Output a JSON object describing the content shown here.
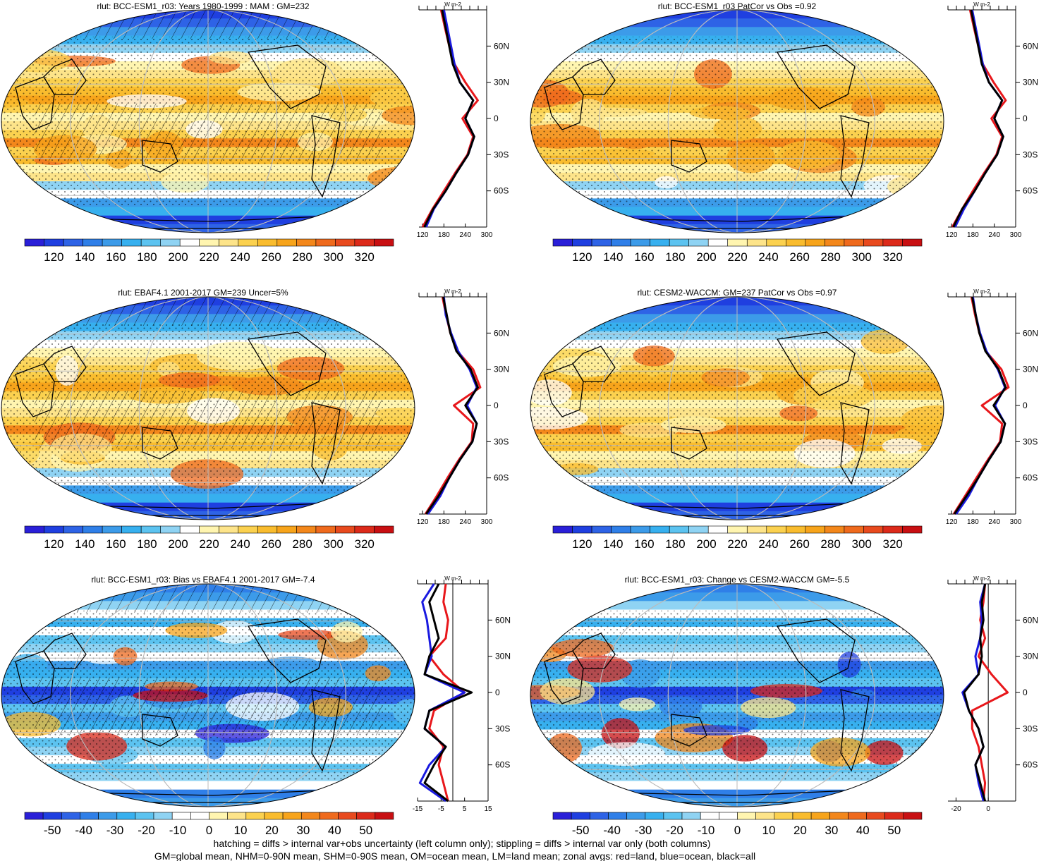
{
  "colors": {
    "mean_palette": [
      "#2a1fd8",
      "#1f3fe0",
      "#2e63e6",
      "#2f7fe8",
      "#3c9be9",
      "#37b0ef",
      "#5cc3f0",
      "#8fd3f3",
      "#ffffff",
      "#fff5b0",
      "#fde48a",
      "#fbd14f",
      "#f9bc2e",
      "#f7a41b",
      "#f3871b",
      "#ef6a1d",
      "#e84a1e",
      "#dc2a1a",
      "#c80f12"
    ],
    "diff_palette": [
      "#2a1fd8",
      "#1f3fe0",
      "#2e63e6",
      "#2f7fe8",
      "#3c9be9",
      "#37b0ef",
      "#5cc3f0",
      "#8fd3f3",
      "#ffffff",
      "#ffffff",
      "#fff5b0",
      "#fde48a",
      "#fbd14f",
      "#f9bc2e",
      "#f7a41b",
      "#f3871b",
      "#ef6a1d",
      "#e84a1e",
      "#dc2a1a",
      "#c80f12"
    ],
    "land": "#e8171b",
    "ocean": "#1a1ae0",
    "all": "#000000"
  },
  "profile_unit": "W m-2",
  "lat_labels": [
    "60N",
    "30N",
    "0",
    "30S",
    "60S"
  ],
  "footer": {
    "line1": "hatching = diffs > internal var+obs uncertainty (left column only); stippling = diffs > internal var only (both columns)",
    "line2": "GM=global mean, NHM=0-90N mean, SHM=0-90S mean, OM=ocean mean, LM=land mean; zonal avgs: red=land, blue=ocean, black=all"
  },
  "chart_data": [
    {
      "id": "p1",
      "type": "map_with_zonal_profile",
      "title": "rlut: BCC-ESM1_r03: Years 1980-1999 : MAM : GM=232",
      "variable": "rlut",
      "global_mean": 232,
      "colorbar_ticks": [
        "120",
        "140",
        "160",
        "180",
        "200",
        "220",
        "240",
        "260",
        "280",
        "300",
        "320"
      ],
      "profile_xticks": [
        "120",
        "180",
        "240",
        "300"
      ],
      "profile_xlim": [
        110,
        300
      ],
      "latitudes": [
        -90,
        -75,
        -60,
        -45,
        -30,
        -15,
        0,
        15,
        30,
        45,
        60,
        75,
        90
      ],
      "zonal_all": [
        125,
        150,
        185,
        215,
        248,
        265,
        240,
        262,
        225,
        205,
        195,
        185,
        175
      ],
      "zonal_ocean": [
        130,
        152,
        185,
        215,
        248,
        265,
        240,
        262,
        225,
        210,
        200,
        190,
        180
      ],
      "zonal_land": [
        120,
        148,
        180,
        212,
        246,
        262,
        232,
        275,
        240,
        210,
        195,
        183,
        172
      ],
      "hatching": true
    },
    {
      "id": "p2",
      "type": "map_with_zonal_profile",
      "title": "rlut: BCC-ESM1_r03 PatCor vs Obs =0.92",
      "variable": "rlut",
      "pattern_correlation": 0.92,
      "colorbar_ticks": [
        "120",
        "140",
        "160",
        "180",
        "200",
        "220",
        "240",
        "260",
        "280",
        "300",
        "320"
      ],
      "profile_xticks": [
        "120",
        "180",
        "240",
        "300"
      ],
      "profile_xlim": [
        110,
        300
      ],
      "latitudes": [
        -90,
        -75,
        -60,
        -45,
        -30,
        -15,
        0,
        15,
        30,
        45,
        60,
        75,
        90
      ],
      "zonal_all": [
        125,
        150,
        185,
        215,
        248,
        265,
        240,
        262,
        225,
        205,
        195,
        185,
        175
      ],
      "zonal_ocean": [
        130,
        155,
        185,
        215,
        248,
        265,
        240,
        262,
        225,
        208,
        198,
        188,
        178
      ],
      "zonal_land": [
        122,
        150,
        180,
        212,
        246,
        262,
        232,
        272,
        238,
        208,
        195,
        183,
        172
      ],
      "hatching": false
    },
    {
      "id": "p3",
      "type": "map_with_zonal_profile",
      "title": "rlut: EBAF4.1 2001-2017 GM=239 Uncer=5%",
      "variable": "rlut",
      "global_mean": 239,
      "uncertainty": "5%",
      "colorbar_ticks": [
        "120",
        "140",
        "160",
        "180",
        "200",
        "220",
        "240",
        "260",
        "280",
        "300",
        "320"
      ],
      "profile_xticks": [
        "120",
        "180",
        "240",
        "300"
      ],
      "profile_xlim": [
        110,
        300
      ],
      "latitudes": [
        -90,
        -75,
        -60,
        -45,
        -30,
        -15,
        0,
        15,
        30,
        45,
        60,
        75,
        90
      ],
      "zonal_all": [
        130,
        165,
        195,
        225,
        260,
        272,
        240,
        275,
        255,
        215,
        198,
        188,
        178
      ],
      "zonal_ocean": [
        135,
        170,
        195,
        225,
        260,
        272,
        245,
        272,
        252,
        220,
        200,
        185,
        180
      ],
      "zonal_land": [
        128,
        160,
        190,
        222,
        258,
        262,
        208,
        282,
        262,
        218,
        198,
        186,
        176
      ],
      "hatching": true
    },
    {
      "id": "p4",
      "type": "map_with_zonal_profile",
      "title": "rlut: CESM2-WACCM: GM=237 PatCor vs Obs =0.97",
      "variable": "rlut",
      "global_mean": 237,
      "pattern_correlation": 0.97,
      "colorbar_ticks": [
        "120",
        "140",
        "160",
        "180",
        "200",
        "220",
        "240",
        "260",
        "280",
        "300",
        "320"
      ],
      "profile_xticks": [
        "120",
        "180",
        "240",
        "300"
      ],
      "profile_xlim": [
        110,
        300
      ],
      "latitudes": [
        -90,
        -75,
        -60,
        -45,
        -30,
        -15,
        0,
        15,
        30,
        45,
        60,
        75,
        90
      ],
      "zonal_all": [
        128,
        162,
        195,
        225,
        258,
        270,
        238,
        272,
        252,
        215,
        198,
        188,
        178
      ],
      "zonal_ocean": [
        133,
        168,
        195,
        225,
        258,
        270,
        242,
        270,
        250,
        218,
        200,
        188,
        180
      ],
      "zonal_land": [
        126,
        158,
        190,
        222,
        256,
        262,
        205,
        280,
        260,
        216,
        198,
        186,
        176
      ],
      "hatching": false
    },
    {
      "id": "p5",
      "type": "map_with_zonal_profile",
      "title": "rlut: BCC-ESM1_r03: Bias vs EBAF4.1 2001-2017 GM=-7.4",
      "variable": "rlut",
      "global_mean": -7.4,
      "colorbar_ticks": [
        "-50",
        "-40",
        "-30",
        "-20",
        "-10",
        "0",
        "10",
        "20",
        "30",
        "40",
        "50"
      ],
      "profile_xticks": [
        "-15",
        "-5",
        "5",
        "15"
      ],
      "profile_xlim": [
        -15,
        15
      ],
      "latitudes": [
        -90,
        -75,
        -60,
        -45,
        -30,
        -15,
        0,
        15,
        30,
        45,
        60,
        75,
        90
      ],
      "zonal_all": [
        -2,
        -12,
        -8,
        -3,
        -12,
        -10,
        8,
        -12,
        -10,
        -6,
        -8,
        -10,
        -6
      ],
      "zonal_ocean": [
        -3,
        -14,
        -10,
        -3,
        -12,
        -10,
        5,
        -12,
        -9,
        -10,
        -11,
        -13,
        -8
      ],
      "zonal_land": [
        -2,
        -4,
        -6,
        -4,
        -10,
        -8,
        5,
        -4,
        -10,
        -3,
        -2,
        -4,
        -3
      ],
      "hatching": true
    },
    {
      "id": "p6",
      "type": "map_with_zonal_profile",
      "title": "rlut: BCC-ESM1_r03: Change vs CESM2-WACCM GM=-5.5",
      "variable": "rlut",
      "global_mean": -5.5,
      "colorbar_ticks": [
        "-50",
        "-40",
        "-30",
        "-20",
        "-10",
        "0",
        "10",
        "20",
        "30",
        "40",
        "50"
      ],
      "profile_xticks": [
        "-20",
        "0"
      ],
      "profile_xlim": [
        -25,
        17
      ],
      "latitudes": [
        -90,
        -75,
        -60,
        -45,
        -30,
        -15,
        0,
        15,
        30,
        45,
        60,
        75,
        90
      ],
      "zonal_all": [
        -2,
        -5,
        -8,
        -3,
        -6,
        -12,
        -15,
        -6,
        -4,
        -5,
        -3,
        -4,
        -2
      ],
      "zonal_ocean": [
        -3,
        -6,
        -8,
        -3,
        -6,
        -12,
        -16,
        -6,
        -8,
        -5,
        -4,
        -5,
        -2
      ],
      "zonal_land": [
        -3,
        -2,
        -4,
        -6,
        -10,
        -10,
        12,
        2,
        -6,
        -2,
        -5,
        -3,
        -2
      ],
      "hatching": false
    }
  ]
}
